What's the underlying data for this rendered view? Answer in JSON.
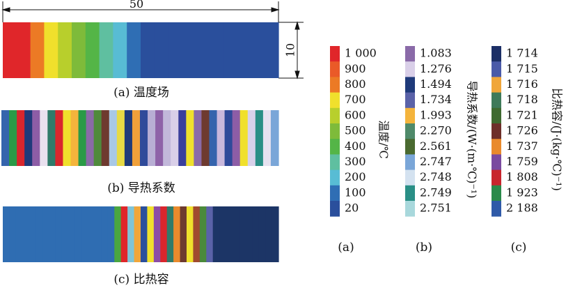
{
  "dimensions": {
    "length": "50",
    "height": "10"
  },
  "strips": [
    {
      "caption": "(a) 温度场",
      "colors": [
        "#e0262a",
        "#e0262a",
        "#ec7a25",
        "#f0e02c",
        "#b8cf2c",
        "#7ebb3a",
        "#54b547",
        "#5fbfa0",
        "#58bcd4",
        "#2f6eb4",
        "#2a4f9c",
        "#2a4f9c",
        "#2a4f9c",
        "#2a4f9c",
        "#2a4f9c",
        "#2a4f9c",
        "#2a4f9c",
        "#2a4f9c",
        "#2a4f9c",
        "#2a4f9c"
      ]
    },
    {
      "caption": "(b) 导热系数",
      "colors": [
        "#3564ad",
        "#2a9a47",
        "#d9262d",
        "#1f3a7a",
        "#8d5da6",
        "#e9e1ef",
        "#2f7b6a",
        "#d9262d",
        "#f0e02c",
        "#f4b43c",
        "#2a9a47",
        "#8a6aa8",
        "#4f8a3c",
        "#6e3a2f",
        "#a8c8e6",
        "#e7da45",
        "#1f3a7a",
        "#f0a03a",
        "#2f4a9a",
        "#b8aed4",
        "#8e62a8",
        "#c2b8da",
        "#d9cfe8",
        "#3a3f9c",
        "#f0e02c",
        "#8a6aa8",
        "#6e3a2f",
        "#3564ad",
        "#c9b8dc",
        "#2f4a9a",
        "#8d5da6",
        "#f0e02c",
        "#d8d1ea",
        "#2a8f86",
        "#e6e2f0",
        "#7aa6d8"
      ]
    },
    {
      "caption": "(c) 比热容",
      "colors": [
        "#2f6db2",
        "#2f6db2",
        "#2f6db2",
        "#2f6db2",
        "#2f6db2",
        "#2f6db2",
        "#2f6db2",
        "#2f6db2",
        "#2f6db2",
        "#2f6db2",
        "#2f6db2",
        "#2f6db2",
        "#2f6db2",
        "#2f6db2",
        "#2f6db2",
        "#2f6db2",
        "#2f6db2",
        "#4aa640",
        "#e0262a",
        "#7ec4d8",
        "#f0a63a",
        "#2a4f9c",
        "#f0e02c",
        "#8b4da6",
        "#d9262d",
        "#2f7b6a",
        "#e98a2c",
        "#6e3a2f",
        "#f0e02c",
        "#a04a2f",
        "#4a8a3a",
        "#5a62a8",
        "#1c3566",
        "#1c3566",
        "#1c3566",
        "#1c3566",
        "#1c3566",
        "#1c3566",
        "#1c3566",
        "#1c3566",
        "#1c3566",
        "#1c3566"
      ]
    }
  ],
  "legends": [
    {
      "caption": "(a)",
      "title": "温度/℃",
      "entries": [
        {
          "label": "1 000",
          "color": "#e0262a"
        },
        {
          "label": "900",
          "color": "#ea5a28"
        },
        {
          "label": "800",
          "color": "#ec7a25"
        },
        {
          "label": "700",
          "color": "#f0e02c"
        },
        {
          "label": "600",
          "color": "#b8cf2c"
        },
        {
          "label": "500",
          "color": "#7ebb3a"
        },
        {
          "label": "400",
          "color": "#54b547"
        },
        {
          "label": "300",
          "color": "#5fbfa0"
        },
        {
          "label": "200",
          "color": "#58bcd4"
        },
        {
          "label": "100",
          "color": "#2f6eb4"
        },
        {
          "label": "20",
          "color": "#2a4f9c"
        }
      ]
    },
    {
      "caption": "(b)",
      "title": "导热系数/(W·(m·℃)⁻¹)",
      "entries": [
        {
          "label": "1.083",
          "color": "#8a6aa8"
        },
        {
          "label": "1.276",
          "color": "#d9cfe8"
        },
        {
          "label": "1.494",
          "color": "#1f3a7a"
        },
        {
          "label": "1.734",
          "color": "#5a62a8"
        },
        {
          "label": "1.993",
          "color": "#f4b43c"
        },
        {
          "label": "2.270",
          "color": "#4f8a6a"
        },
        {
          "label": "2.561",
          "color": "#4a6a30"
        },
        {
          "label": "2.747",
          "color": "#7aa6d8"
        },
        {
          "label": "2.748",
          "color": "#d4e2f0"
        },
        {
          "label": "2.749",
          "color": "#2a8f86"
        },
        {
          "label": "2.751",
          "color": "#a8d8dc"
        }
      ]
    },
    {
      "caption": "(c)",
      "title": "比热容/(J·(kg·℃)⁻¹)",
      "entries": [
        {
          "label": "1 714",
          "color": "#1c2f66"
        },
        {
          "label": "1 715",
          "color": "#4a5aa8"
        },
        {
          "label": "1 716",
          "color": "#f0a63a"
        },
        {
          "label": "1 718",
          "color": "#3f7a5a"
        },
        {
          "label": "1 721",
          "color": "#3f6a30"
        },
        {
          "label": "1 726",
          "color": "#6e2f2a"
        },
        {
          "label": "1 737",
          "color": "#e98a2c"
        },
        {
          "label": "1 759",
          "color": "#7a4aa0"
        },
        {
          "label": "1 808",
          "color": "#c8262d"
        },
        {
          "label": "1 923",
          "color": "#2a8a4a"
        },
        {
          "label": "2 188",
          "color": "#2f5aa8"
        }
      ]
    }
  ]
}
